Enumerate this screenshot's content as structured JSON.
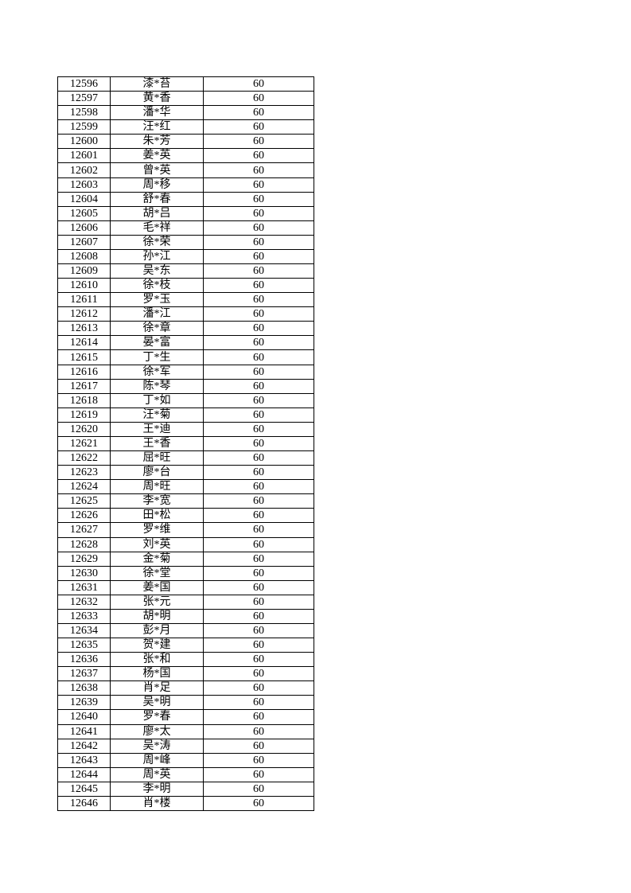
{
  "table": {
    "rows": [
      {
        "id": "12596",
        "name": "漆*苔",
        "score": "60"
      },
      {
        "id": "12597",
        "name": "黄*香",
        "score": "60"
      },
      {
        "id": "12598",
        "name": "潘*华",
        "score": "60"
      },
      {
        "id": "12599",
        "name": "汪*红",
        "score": "60"
      },
      {
        "id": "12600",
        "name": "朱*芳",
        "score": "60"
      },
      {
        "id": "12601",
        "name": "姜*英",
        "score": "60"
      },
      {
        "id": "12602",
        "name": "曾*英",
        "score": "60"
      },
      {
        "id": "12603",
        "name": "周*移",
        "score": "60"
      },
      {
        "id": "12604",
        "name": "舒*春",
        "score": "60"
      },
      {
        "id": "12605",
        "name": "胡*吕",
        "score": "60"
      },
      {
        "id": "12606",
        "name": "毛*祥",
        "score": "60"
      },
      {
        "id": "12607",
        "name": "徐*荣",
        "score": "60"
      },
      {
        "id": "12608",
        "name": "孙*江",
        "score": "60"
      },
      {
        "id": "12609",
        "name": "吴*东",
        "score": "60"
      },
      {
        "id": "12610",
        "name": "徐*枝",
        "score": "60"
      },
      {
        "id": "12611",
        "name": "罗*玉",
        "score": "60"
      },
      {
        "id": "12612",
        "name": "潘*江",
        "score": "60"
      },
      {
        "id": "12613",
        "name": "徐*章",
        "score": "60"
      },
      {
        "id": "12614",
        "name": "晏*富",
        "score": "60"
      },
      {
        "id": "12615",
        "name": "丁*生",
        "score": "60"
      },
      {
        "id": "12616",
        "name": "徐*军",
        "score": "60"
      },
      {
        "id": "12617",
        "name": "陈*琴",
        "score": "60"
      },
      {
        "id": "12618",
        "name": "丁*如",
        "score": "60"
      },
      {
        "id": "12619",
        "name": "汪*菊",
        "score": "60"
      },
      {
        "id": "12620",
        "name": "王*迪",
        "score": "60"
      },
      {
        "id": "12621",
        "name": "王*香",
        "score": "60"
      },
      {
        "id": "12622",
        "name": "屈*旺",
        "score": "60"
      },
      {
        "id": "12623",
        "name": "廖*台",
        "score": "60"
      },
      {
        "id": "12624",
        "name": "周*旺",
        "score": "60"
      },
      {
        "id": "12625",
        "name": "李*宽",
        "score": "60"
      },
      {
        "id": "12626",
        "name": "田*松",
        "score": "60"
      },
      {
        "id": "12627",
        "name": "罗*维",
        "score": "60"
      },
      {
        "id": "12628",
        "name": "刘*英",
        "score": "60"
      },
      {
        "id": "12629",
        "name": "金*菊",
        "score": "60"
      },
      {
        "id": "12630",
        "name": "徐*堂",
        "score": "60"
      },
      {
        "id": "12631",
        "name": "姜*国",
        "score": "60"
      },
      {
        "id": "12632",
        "name": "张*元",
        "score": "60"
      },
      {
        "id": "12633",
        "name": "胡*明",
        "score": "60"
      },
      {
        "id": "12634",
        "name": "彭*月",
        "score": "60"
      },
      {
        "id": "12635",
        "name": "贺*建",
        "score": "60"
      },
      {
        "id": "12636",
        "name": "张*和",
        "score": "60"
      },
      {
        "id": "12637",
        "name": "杨*国",
        "score": "60"
      },
      {
        "id": "12638",
        "name": "肖*足",
        "score": "60"
      },
      {
        "id": "12639",
        "name": "吴*明",
        "score": "60"
      },
      {
        "id": "12640",
        "name": "罗*春",
        "score": "60"
      },
      {
        "id": "12641",
        "name": "廖*太",
        "score": "60"
      },
      {
        "id": "12642",
        "name": "吴*涛",
        "score": "60"
      },
      {
        "id": "12643",
        "name": "周*峰",
        "score": "60"
      },
      {
        "id": "12644",
        "name": "周*英",
        "score": "60"
      },
      {
        "id": "12645",
        "name": "李*明",
        "score": "60"
      },
      {
        "id": "12646",
        "name": "肖*楼",
        "score": "60"
      }
    ]
  }
}
